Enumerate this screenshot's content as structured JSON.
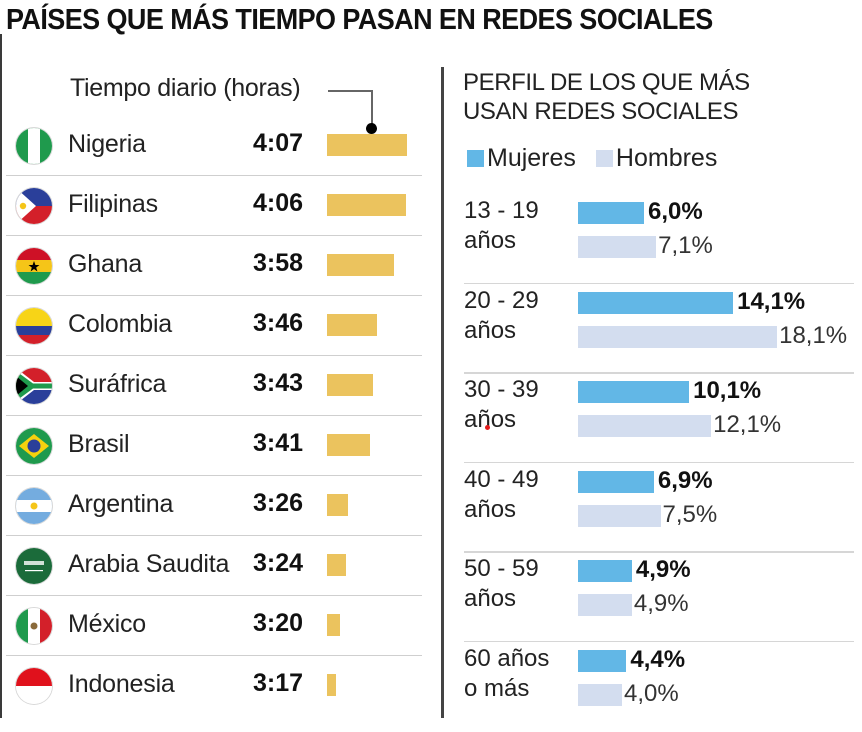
{
  "title": "PAÍSES QUE MÁS TIEMPO PASAN EN REDES SOCIALES",
  "chart_data": [
    {
      "type": "bar",
      "orientation": "horizontal",
      "title": "Tiempo diario (horas)",
      "categories": [
        "Nigeria",
        "Filipinas",
        "Ghana",
        "Colombia",
        "Suráfrica",
        "Brasil",
        "Argentina",
        "Arabia Saudita",
        "México",
        "Indonesia"
      ],
      "labels": [
        "4:07",
        "4:06",
        "3:58",
        "3:46",
        "3:43",
        "3:41",
        "3:26",
        "3:24",
        "3:20",
        "3:17"
      ],
      "values_minutes": [
        247,
        246,
        238,
        226,
        223,
        221,
        206,
        204,
        200,
        197
      ],
      "flags": [
        "nigeria-flag-icon",
        "philippines-flag-icon",
        "ghana-flag-icon",
        "colombia-flag-icon",
        "south-africa-flag-icon",
        "brazil-flag-icon",
        "argentina-flag-icon",
        "saudi-arabia-flag-icon",
        "mexico-flag-icon",
        "indonesia-flag-icon"
      ],
      "bar_color": "#ebc35e"
    },
    {
      "type": "bar",
      "orientation": "horizontal",
      "title": "PERFIL DE LOS QUE MÁS USAN REDES SOCIALES",
      "categories": [
        "13 - 19 años",
        "20 - 29 años",
        "30 - 39 años",
        "40 - 49 años",
        "50 - 59 años",
        "60 años o más"
      ],
      "category_lines": [
        [
          "13 - 19",
          "años"
        ],
        [
          "20 - 29",
          "años"
        ],
        [
          "30 - 39",
          "años"
        ],
        [
          "40 - 49",
          "años"
        ],
        [
          "50 - 59",
          "años"
        ],
        [
          "60 años",
          "o más"
        ]
      ],
      "series": [
        {
          "name": "Mujeres",
          "color": "#62b7e6",
          "values": [
            6.0,
            14.1,
            10.1,
            6.9,
            4.9,
            4.4
          ],
          "labels": [
            "6,0%",
            "14,1%",
            "10,1%",
            "6,9%",
            "4,9%",
            "4,4%"
          ]
        },
        {
          "name": "Hombres",
          "color": "#d3ddef",
          "values": [
            7.1,
            18.1,
            12.1,
            7.5,
            4.9,
            4.0
          ],
          "labels": [
            "7,1%",
            "18,1%",
            "12,1%",
            "7,5%",
            "4,9%",
            "4,0%"
          ]
        }
      ],
      "unit": "%"
    }
  ]
}
